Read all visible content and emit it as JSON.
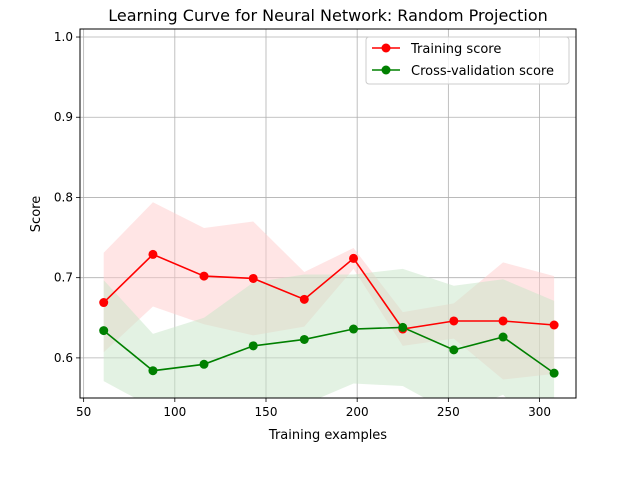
{
  "chart_data": {
    "type": "line",
    "title": "Learning Curve for Neural Network: Random Projection",
    "xlabel": "Training examples",
    "ylabel": "Score",
    "xlim": [
      48,
      320
    ],
    "ylim": [
      0.55,
      1.01
    ],
    "xticks": [
      50,
      100,
      150,
      200,
      250,
      300
    ],
    "yticks": [
      0.6,
      0.7,
      0.8,
      0.9,
      1.0
    ],
    "xtick_labels": [
      "50",
      "100",
      "150",
      "200",
      "250",
      "300"
    ],
    "ytick_labels": [
      "0.6",
      "0.7",
      "0.8",
      "0.9",
      "1.0"
    ],
    "grid": true,
    "legend_position": "top-right",
    "x": [
      61,
      88,
      116,
      143,
      171,
      198,
      225,
      253,
      280,
      308
    ],
    "series": [
      {
        "name": "Training score",
        "color": "#ff0000",
        "band_color": "#ffcccc",
        "values": [
          0.669,
          0.729,
          0.702,
          0.699,
          0.673,
          0.724,
          0.636,
          0.646,
          0.646,
          0.641
        ],
        "upper": [
          0.731,
          0.794,
          0.762,
          0.77,
          0.707,
          0.737,
          0.657,
          0.668,
          0.719,
          0.702
        ],
        "lower": [
          0.607,
          0.664,
          0.642,
          0.628,
          0.639,
          0.711,
          0.615,
          0.624,
          0.573,
          0.58
        ]
      },
      {
        "name": "Cross-validation score",
        "color": "#008000",
        "band_color": "#c8e6c8",
        "values": [
          0.634,
          0.584,
          0.592,
          0.615,
          0.623,
          0.636,
          0.638,
          0.61,
          0.626,
          0.581
        ],
        "upper": [
          0.697,
          0.63,
          0.65,
          0.694,
          0.704,
          0.704,
          0.711,
          0.69,
          0.698,
          0.671
        ],
        "lower": [
          0.571,
          0.538,
          0.534,
          0.536,
          0.542,
          0.568,
          0.565,
          0.53,
          0.554,
          0.491
        ]
      }
    ]
  }
}
